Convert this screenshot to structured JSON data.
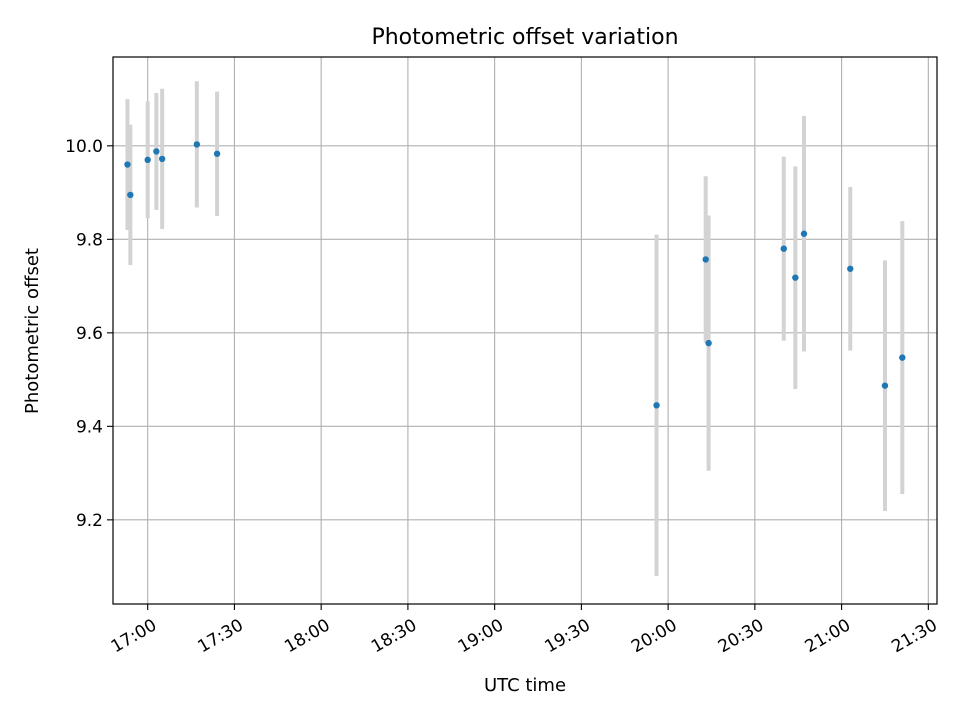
{
  "chart_data": {
    "type": "scatter",
    "title": "Photometric offset variation",
    "xlabel": "UTC time",
    "ylabel": "Photometric offset",
    "x_tick_labels": [
      "17:00",
      "17:30",
      "18:00",
      "18:30",
      "19:00",
      "19:30",
      "20:00",
      "20:30",
      "21:00",
      "21:30"
    ],
    "y_tick_labels": [
      "9.2",
      "9.4",
      "9.6",
      "9.8",
      "10.0"
    ],
    "y_ticks": [
      9.2,
      9.4,
      9.6,
      9.8,
      10.0
    ],
    "xlim": [
      "16:48",
      "21:33"
    ],
    "ylim": [
      9.02,
      10.19
    ],
    "grid": true,
    "point_color": "#1f77b4",
    "errorbar_color": "#d3d3d3",
    "points": [
      {
        "x": "16:53",
        "y": 9.96,
        "yerr": 0.14
      },
      {
        "x": "16:54",
        "y": 9.895,
        "yerr": 0.15
      },
      {
        "x": "17:00",
        "y": 9.97,
        "yerr": 0.125
      },
      {
        "x": "17:03",
        "y": 9.988,
        "yerr": 0.125
      },
      {
        "x": "17:05",
        "y": 9.972,
        "yerr": 0.15
      },
      {
        "x": "17:17",
        "y": 10.003,
        "yerr": 0.135
      },
      {
        "x": "17:24",
        "y": 9.983,
        "yerr": 0.133
      },
      {
        "x": "19:56",
        "y": 9.445,
        "yerr": 0.365
      },
      {
        "x": "20:13",
        "y": 9.757,
        "yerr": 0.178
      },
      {
        "x": "20:14",
        "y": 9.578,
        "yerr": 0.273
      },
      {
        "x": "20:40",
        "y": 9.78,
        "yerr": 0.197
      },
      {
        "x": "20:44",
        "y": 9.718,
        "yerr": 0.238
      },
      {
        "x": "20:47",
        "y": 9.812,
        "yerr": 0.252
      },
      {
        "x": "21:03",
        "y": 9.737,
        "yerr": 0.175
      },
      {
        "x": "21:15",
        "y": 9.487,
        "yerr": 0.268
      },
      {
        "x": "21:21",
        "y": 9.547,
        "yerr": 0.292
      }
    ]
  }
}
